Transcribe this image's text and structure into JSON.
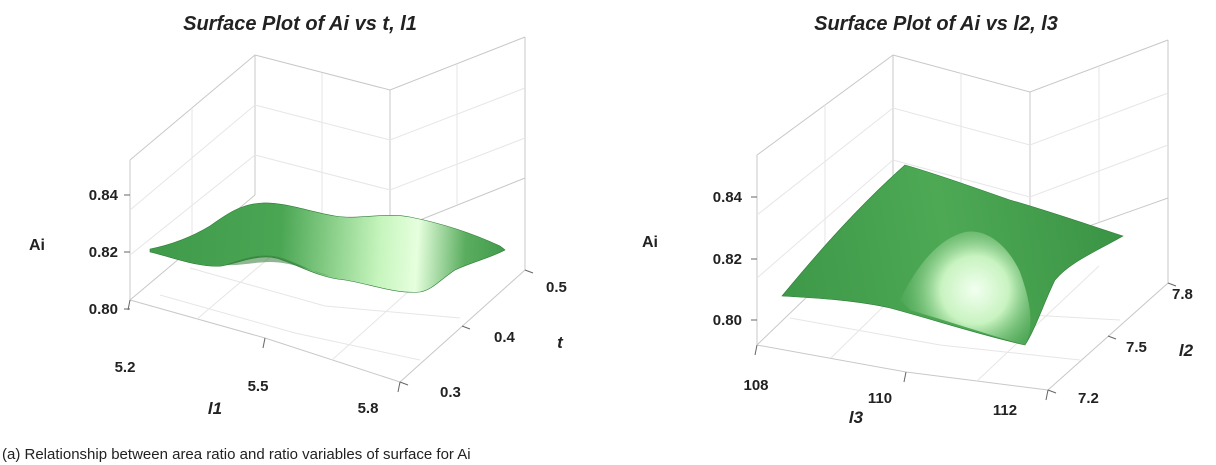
{
  "chart_data": [
    {
      "type": "surface",
      "title": "Surface Plot of Ai vs t, l1",
      "zlabel": "Ai",
      "xlabel": "l1",
      "ylabel": "t",
      "x_ticks": [
        "5.2",
        "5.5",
        "5.8"
      ],
      "y_ticks": [
        "0.3",
        "0.4",
        "0.5"
      ],
      "z_ticks": [
        "0.80",
        "0.82",
        "0.84"
      ],
      "x_range": [
        5.2,
        5.8
      ],
      "y_range": [
        0.3,
        0.5
      ],
      "zlim": [
        0.795,
        0.848
      ],
      "surface_color": "#3e9a48",
      "highlight_color": "#e8ffe0",
      "surface_corners": {
        "l1=5.2,t=0.3": 0.819,
        "l1=5.8,t=0.3": 0.815,
        "l1=5.8,t=0.5": 0.819,
        "l1=5.2,t=0.5": 0.822
      },
      "surface_range": [
        0.814,
        0.824
      ]
    },
    {
      "type": "surface",
      "title": "Surface Plot of Ai vs l2, l3",
      "zlabel": "Ai",
      "xlabel": "l3",
      "ylabel": "l2",
      "x_ticks": [
        "108",
        "110",
        "112"
      ],
      "y_ticks": [
        "7.2",
        "7.5",
        "7.8"
      ],
      "z_ticks": [
        "0.80",
        "0.82",
        "0.84"
      ],
      "x_range": [
        108,
        112
      ],
      "y_range": [
        7.2,
        7.8
      ],
      "zlim": [
        0.795,
        0.848
      ],
      "surface_color": "#3e9a48",
      "highlight_color": "#e8ffe0",
      "surface_corners": {
        "l3=108,l2=7.2": 0.809,
        "l3=112,l2=7.2": 0.807,
        "l3=112,l2=7.8": 0.826,
        "l3=108,l2=7.8": 0.842
      },
      "surface_range": [
        0.805,
        0.843
      ]
    }
  ],
  "caption": "(a) Relationship between area ratio and ratio variables of surface for Ai"
}
